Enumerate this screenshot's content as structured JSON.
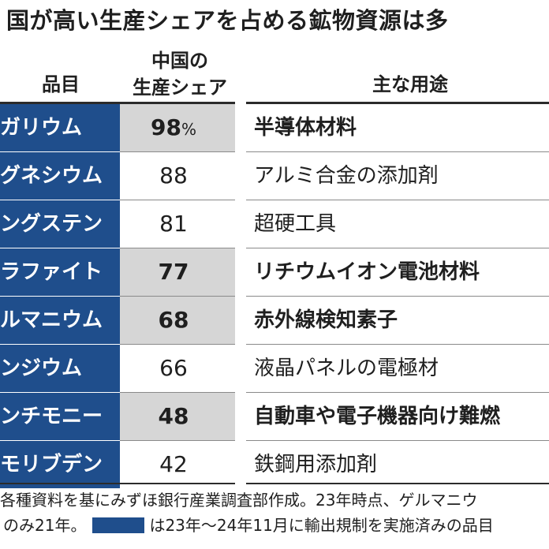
{
  "title": "国が高い生産シェアを占める鉱物資源は多",
  "headers": {
    "item": "品目",
    "share_line1": "中国の",
    "share_line2": "生産シェア",
    "use": "主な用途"
  },
  "colors": {
    "controlled_fill": "#1f4e8c",
    "shaded_share": "#d6d6d6",
    "rule": "#2b2b2b"
  },
  "rows": [
    {
      "item": "ガリウム",
      "share": "98",
      "unit": "%",
      "use": "半導体材料",
      "export_controlled": true
    },
    {
      "item": "グネシウム",
      "share": "88",
      "unit": "",
      "use": "アルミ合金の添加剤",
      "export_controlled": true
    },
    {
      "item": "ングステン",
      "share": "81",
      "unit": "",
      "use": "超硬工具",
      "export_controlled": true
    },
    {
      "item": "ラファイト",
      "share": "77",
      "unit": "",
      "use": "リチウムイオン電池材料",
      "export_controlled": true
    },
    {
      "item": "ルマニウム",
      "share": "68",
      "unit": "",
      "use": "赤外線検知素子",
      "export_controlled": true
    },
    {
      "item": "ンジウム",
      "share": "66",
      "unit": "",
      "use": "液晶パネルの電極材",
      "export_controlled": true
    },
    {
      "item": "ンチモニー",
      "share": "48",
      "unit": "",
      "use": "自動車や電子機器向け難燃",
      "export_controlled": true
    },
    {
      "item": "モリブデン",
      "share": "42",
      "unit": "",
      "use": "鉄鋼用添加剤",
      "export_controlled": true
    }
  ],
  "notes": {
    "line1": "各種資料を基にみずほ銀行産業調査部作成。23年時点、ゲルマニウ",
    "line2_prefix": "のみ21年。",
    "line2_suffix": "は23年〜24年11月に輸出規制を実施済みの品目"
  }
}
